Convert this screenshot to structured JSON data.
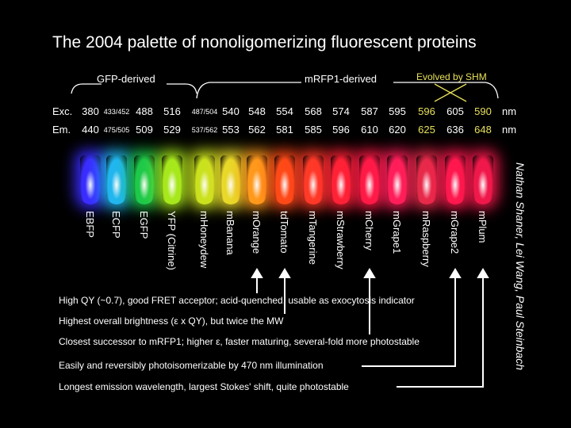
{
  "title": "The 2004 palette of nonoligomerizing fluorescent proteins",
  "groups": {
    "gfp": "GFP-derived",
    "mrfp": "mRFP1-derived",
    "shm": "Evolved by SHM"
  },
  "rows": {
    "exc_label": "Exc.",
    "em_label": "Em.",
    "unit": "nm"
  },
  "excitation": [
    "380",
    "433/452",
    "488",
    "516",
    "487/504",
    "540",
    "548",
    "554",
    "568",
    "574",
    "587",
    "595",
    "596",
    "605",
    "590"
  ],
  "emission": [
    "440",
    "475/505",
    "509",
    "529",
    "537/562",
    "553",
    "562",
    "581",
    "585",
    "596",
    "610",
    "620",
    "625",
    "636",
    "648"
  ],
  "proteins": [
    "EBFP",
    "ECFP",
    "EGFP",
    "YFP (Citrine)",
    "mHoneydew",
    "mBanana",
    "mOrange",
    "tdTomato",
    "mTangerine",
    "mStrawberry",
    "mCherry",
    "mGrape1",
    "mRaspberry",
    "mGrape2",
    "mPlum"
  ],
  "tube_colors": [
    "#3a2cff",
    "#22b6f0",
    "#1ec94a",
    "#a6e81c",
    "#c9e21e",
    "#e8d92a",
    "#ff9a1c",
    "#ff4a18",
    "#ff3a28",
    "#ff2236",
    "#ff1a46",
    "#ff1e5a",
    "#e82a4a",
    "#ff184e",
    "#f0184a"
  ],
  "notes": [
    "High QY (~0.7), good FRET acceptor; acid-quenched, usable as exocytosis indicator",
    "Highest overall brightness (ε x QY), but twice the MW",
    "Closest successor to mRFP1; higher ε, faster maturing, several-fold more photostable",
    "Easily and reversibly photoisomerizable by 470 nm illumination",
    "Longest emission wavelength, largest Stokes' shift, quite photostable"
  ],
  "authors": "Nathan Shaner, Lei Wang, Paul Steinbach",
  "colors": {
    "background": "#000000",
    "text": "#ffffff",
    "highlight": "#e8e05a"
  }
}
